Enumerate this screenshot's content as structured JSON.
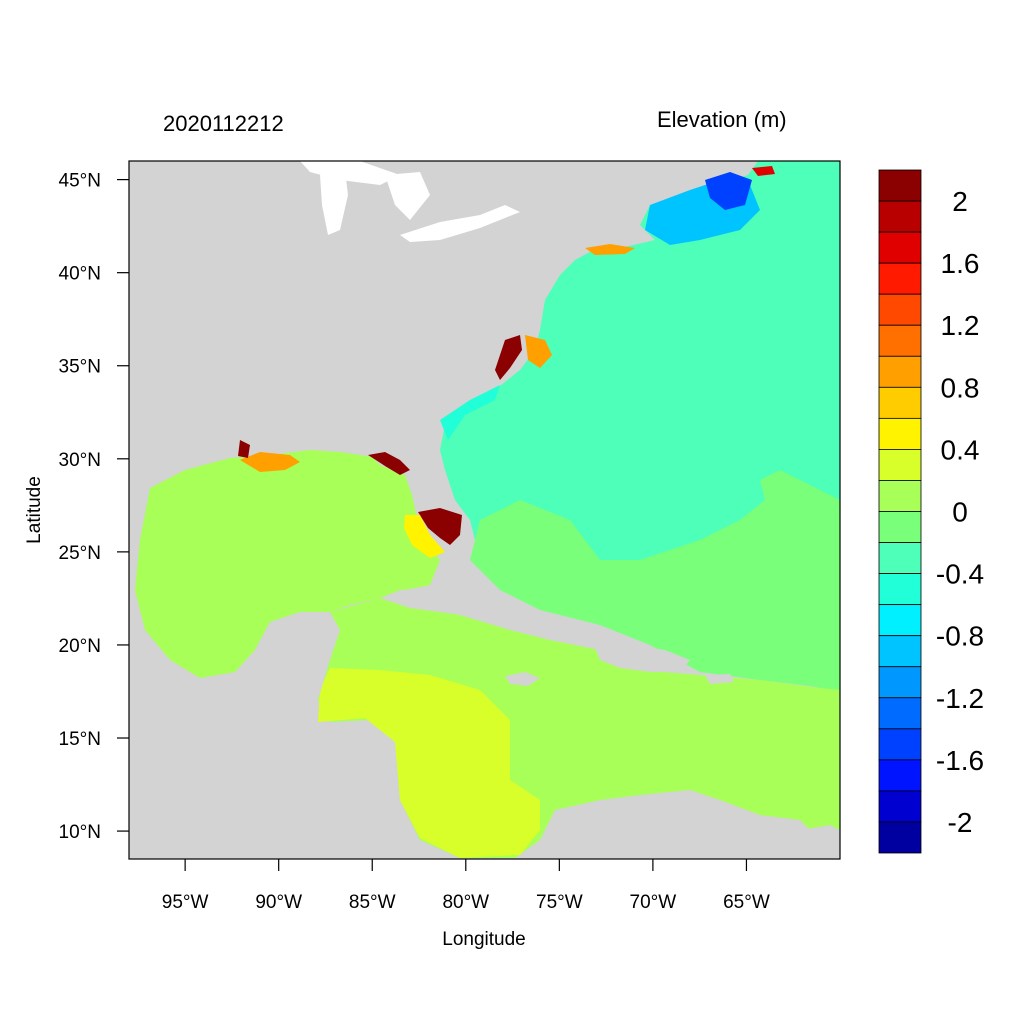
{
  "map": {
    "title_left": "2020112212",
    "title_right": "Elevation (m)",
    "xlabel": "Longitude",
    "ylabel": "Latitude",
    "lon_range": [
      -98,
      -60
    ],
    "lat_range": [
      8.5,
      46
    ],
    "lon_ticks": [
      {
        "value": -95,
        "label": "95°W"
      },
      {
        "value": -90,
        "label": "90°W"
      },
      {
        "value": -85,
        "label": "85°W"
      },
      {
        "value": -80,
        "label": "80°W"
      },
      {
        "value": -75,
        "label": "75°W"
      },
      {
        "value": -70,
        "label": "70°W"
      },
      {
        "value": -65,
        "label": "65°W"
      }
    ],
    "lat_ticks": [
      {
        "value": 45,
        "label": "45°N"
      },
      {
        "value": 40,
        "label": "40°N"
      },
      {
        "value": 35,
        "label": "35°N"
      },
      {
        "value": 30,
        "label": "30°N"
      },
      {
        "value": 25,
        "label": "25°N"
      },
      {
        "value": 20,
        "label": "20°N"
      },
      {
        "value": 15,
        "label": "15°N"
      },
      {
        "value": 10,
        "label": "10°N"
      }
    ],
    "colors": {
      "land": "#d3d3d3",
      "atlantic": "#4dffb8",
      "gulf": "#a8ff58",
      "caribbean": "#7aff7a",
      "caribbean_southwest": "#d8ff2a",
      "lakes": "#ffffff"
    }
  },
  "colorbar": {
    "colors": [
      "#8b0000",
      "#b80000",
      "#e00000",
      "#ff1a00",
      "#ff4800",
      "#ff7000",
      "#ff9f00",
      "#ffcc00",
      "#fff300",
      "#d8ff2a",
      "#a8ff58",
      "#7aff7a",
      "#4dffb8",
      "#20ffd8",
      "#00f0ff",
      "#00c4ff",
      "#0098ff",
      "#006cff",
      "#0040ff",
      "#0014ff",
      "#0000d0",
      "#0000a0"
    ],
    "labels": [
      "2",
      "1.6",
      "1.2",
      "0.8",
      "0.4",
      "0",
      "-0.4",
      "-0.8",
      "-1.2",
      "-1.6",
      "-2"
    ]
  }
}
